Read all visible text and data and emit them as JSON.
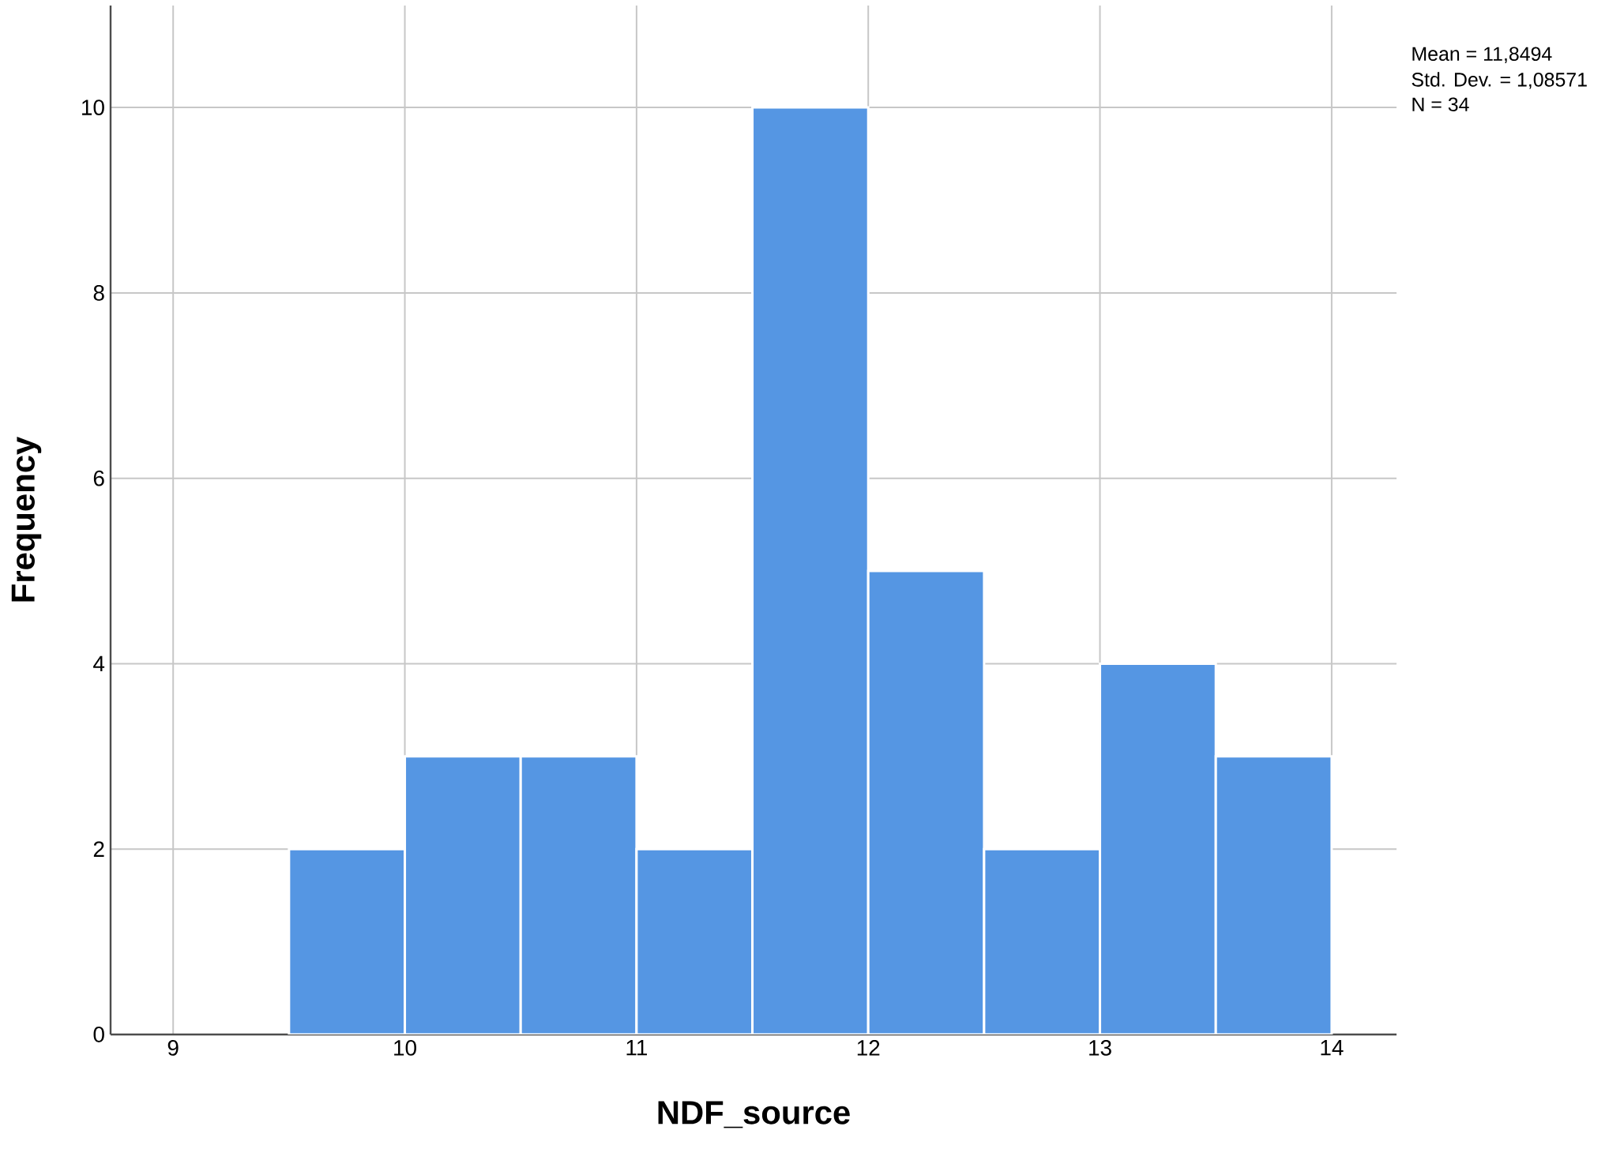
{
  "chart_data": {
    "type": "histogram",
    "xlabel": "NDF_source",
    "ylabel": "Frequency",
    "bins": [
      9.5,
      10,
      10.5,
      11,
      11.5,
      12,
      12.5,
      13,
      13.5,
      14
    ],
    "values": [
      2,
      3,
      3,
      2,
      10,
      5,
      2,
      4,
      3
    ],
    "color": "#5596e3",
    "xlim": [
      8.73,
      14.28
    ],
    "ylim": [
      0,
      11.1
    ],
    "xticks": [
      9,
      10,
      11,
      12,
      13,
      14
    ],
    "yticks": [
      0,
      2,
      4,
      6,
      8,
      10
    ],
    "grid": true,
    "annotations": [
      "Mean = 11,8494",
      "Std. Dev. = 1,08571",
      "N = 34"
    ]
  }
}
